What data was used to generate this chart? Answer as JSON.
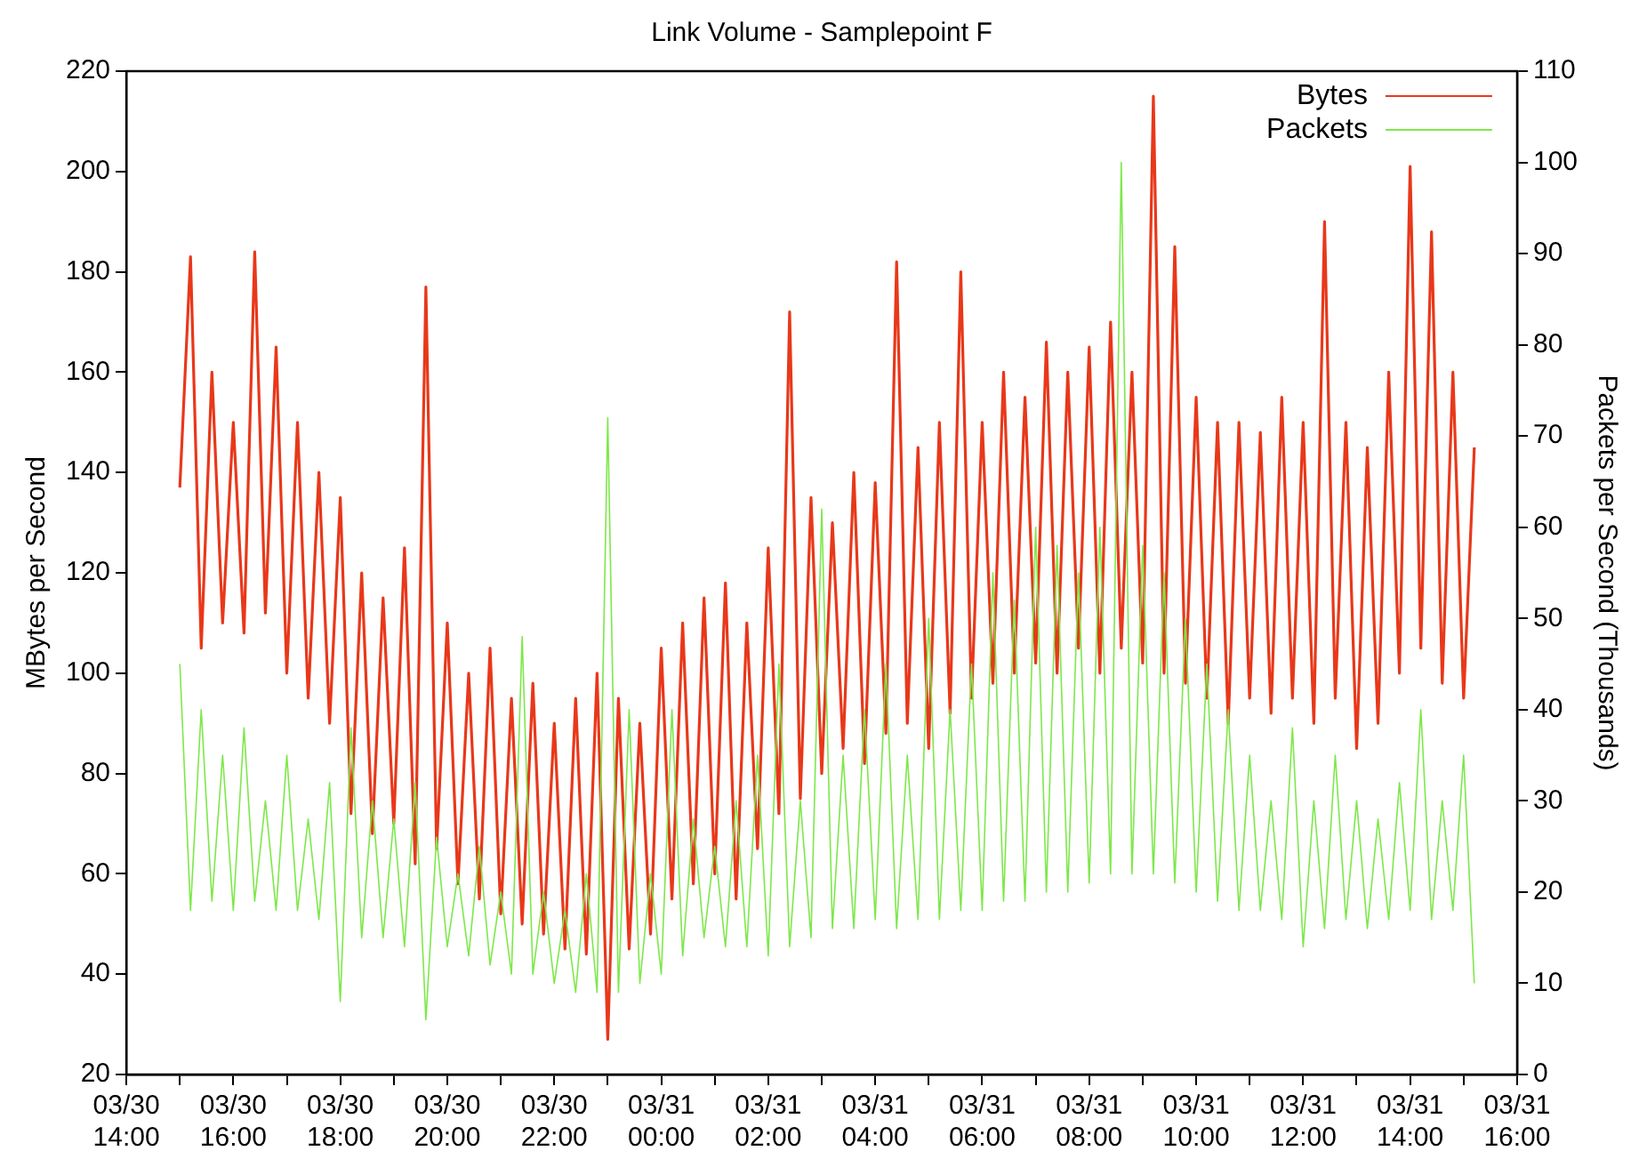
{
  "chart_data": {
    "type": "line",
    "title": "Link Volume - Samplepoint F",
    "ylabel": "MBytes per Second",
    "y2label": "Packets per Second (Thousands)",
    "x": [
      "--03-30T15:00",
      "--03-30T15:12",
      "--03-30T15:24",
      "--03-30T15:36",
      "--03-30T15:48",
      "--03-30T16:00",
      "--03-30T16:12",
      "--03-30T16:24",
      "--03-30T16:36",
      "--03-30T16:48",
      "--03-30T17:00",
      "--03-30T17:12",
      "--03-30T17:24",
      "--03-30T17:36",
      "--03-30T17:48",
      "--03-30T18:00",
      "--03-30T18:12",
      "--03-30T18:24",
      "--03-30T18:36",
      "--03-30T18:48",
      "--03-30T19:00",
      "--03-30T19:12",
      "--03-30T19:24",
      "--03-30T19:36",
      "--03-30T19:48",
      "--03-30T20:00",
      "--03-30T20:12",
      "--03-30T20:24",
      "--03-30T20:36",
      "--03-30T20:48",
      "--03-30T21:00",
      "--03-30T21:12",
      "--03-30T21:24",
      "--03-30T21:36",
      "--03-30T21:48",
      "--03-30T22:00",
      "--03-30T22:12",
      "--03-30T22:24",
      "--03-30T22:36",
      "--03-30T22:48",
      "--03-30T23:00",
      "--03-30T23:12",
      "--03-30T23:24",
      "--03-30T23:36",
      "--03-30T23:48",
      "--03-31T00:00",
      "--03-31T00:12",
      "--03-31T00:24",
      "--03-31T00:36",
      "--03-31T00:48",
      "--03-31T01:00",
      "--03-31T01:12",
      "--03-31T01:24",
      "--03-31T01:36",
      "--03-31T01:48",
      "--03-31T02:00",
      "--03-31T02:12",
      "--03-31T02:24",
      "--03-31T02:36",
      "--03-31T02:48",
      "--03-31T03:00",
      "--03-31T03:12",
      "--03-31T03:24",
      "--03-31T03:36",
      "--03-31T03:48",
      "--03-31T04:00",
      "--03-31T04:12",
      "--03-31T04:24",
      "--03-31T04:36",
      "--03-31T04:48",
      "--03-31T05:00",
      "--03-31T05:12",
      "--03-31T05:24",
      "--03-31T05:36",
      "--03-31T05:48",
      "--03-31T06:00",
      "--03-31T06:12",
      "--03-31T06:24",
      "--03-31T06:36",
      "--03-31T06:48",
      "--03-31T07:00",
      "--03-31T07:12",
      "--03-31T07:24",
      "--03-31T07:36",
      "--03-31T07:48",
      "--03-31T08:00",
      "--03-31T08:12",
      "--03-31T08:24",
      "--03-31T08:36",
      "--03-31T08:48",
      "--03-31T09:00",
      "--03-31T09:12",
      "--03-31T09:24",
      "--03-31T09:36",
      "--03-31T09:48",
      "--03-31T10:00",
      "--03-31T10:12",
      "--03-31T10:24",
      "--03-31T10:36",
      "--03-31T10:48",
      "--03-31T11:00",
      "--03-31T11:12",
      "--03-31T11:24",
      "--03-31T11:36",
      "--03-31T11:48",
      "--03-31T12:00",
      "--03-31T12:12",
      "--03-31T12:24",
      "--03-31T12:36",
      "--03-31T12:48",
      "--03-31T13:00",
      "--03-31T13:12",
      "--03-31T13:24",
      "--03-31T13:36",
      "--03-31T13:48",
      "--03-31T14:00",
      "--03-31T14:12",
      "--03-31T14:24",
      "--03-31T14:36",
      "--03-31T14:48",
      "--03-31T15:00",
      "--03-31T15:12"
    ],
    "series": [
      {
        "name": "Bytes",
        "color": "#e8381a",
        "values": [
          137,
          183,
          105,
          160,
          110,
          150,
          108,
          184,
          112,
          165,
          100,
          150,
          95,
          140,
          90,
          135,
          72,
          120,
          68,
          115,
          70,
          125,
          62,
          177,
          65,
          110,
          58,
          100,
          55,
          105,
          52,
          95,
          50,
          98,
          48,
          90,
          45,
          95,
          44,
          100,
          27,
          95,
          45,
          90,
          48,
          105,
          55,
          110,
          58,
          115,
          60,
          118,
          55,
          110,
          65,
          125,
          72,
          172,
          75,
          135,
          80,
          130,
          85,
          140,
          82,
          138,
          88,
          182,
          90,
          145,
          85,
          150,
          92,
          180,
          95,
          150,
          98,
          160,
          100,
          155,
          102,
          166,
          100,
          160,
          105,
          165,
          100,
          170,
          105,
          160,
          102,
          215,
          100,
          185,
          98,
          155,
          95,
          150,
          90,
          150,
          95,
          148,
          92,
          155,
          95,
          150,
          90,
          190,
          95,
          150,
          85,
          145,
          90,
          160,
          100,
          201,
          105,
          188,
          98,
          160,
          95,
          145
        ]
      },
      {
        "name": "Packets",
        "color": "#7de84a",
        "axis": "y2",
        "values": [
          45,
          18,
          40,
          19,
          35,
          18,
          38,
          19,
          30,
          18,
          35,
          18,
          28,
          17,
          32,
          8,
          38,
          15,
          30,
          15,
          28,
          14,
          32,
          6,
          26,
          14,
          22,
          13,
          25,
          12,
          20,
          11,
          48,
          11,
          20,
          10,
          18,
          9,
          22,
          9,
          72,
          9,
          40,
          10,
          22,
          11,
          40,
          13,
          28,
          15,
          25,
          14,
          30,
          14,
          35,
          13,
          45,
          14,
          30,
          15,
          62,
          16,
          35,
          16,
          40,
          17,
          45,
          16,
          35,
          17,
          50,
          17,
          40,
          18,
          45,
          18,
          55,
          19,
          52,
          19,
          60,
          20,
          58,
          20,
          55,
          21,
          60,
          22,
          100,
          22,
          58,
          22,
          55,
          21,
          50,
          20,
          45,
          19,
          40,
          18,
          35,
          18,
          30,
          17,
          38,
          14,
          30,
          16,
          35,
          17,
          30,
          16,
          28,
          17,
          32,
          18,
          40,
          17,
          30,
          18,
          35,
          10
        ]
      }
    ],
    "xlim": [
      "--03-30T14:00",
      "--03-31T16:00"
    ],
    "xticks": [
      {
        "value": "--03-30T14:00",
        "label": "03/30 14:00"
      },
      {
        "value": "--03-30T15:00",
        "label": null
      },
      {
        "value": "--03-30T16:00",
        "label": "03/30 16:00"
      },
      {
        "value": "--03-30T17:00",
        "label": null
      },
      {
        "value": "--03-30T18:00",
        "label": "03/30 18:00"
      },
      {
        "value": "--03-30T19:00",
        "label": null
      },
      {
        "value": "--03-30T20:00",
        "label": "03/30 20:00"
      },
      {
        "value": "--03-30T21:00",
        "label": null
      },
      {
        "value": "--03-30T22:00",
        "label": "03/30 22:00"
      },
      {
        "value": "--03-30T23:00",
        "label": null
      },
      {
        "value": "--03-31T00:00",
        "label": "03/31 00:00"
      },
      {
        "value": "--03-31T01:00",
        "label": null
      },
      {
        "value": "--03-31T02:00",
        "label": "03/31 02:00"
      },
      {
        "value": "--03-31T03:00",
        "label": null
      },
      {
        "value": "--03-31T04:00",
        "label": "03/31 04:00"
      },
      {
        "value": "--03-31T05:00",
        "label": null
      },
      {
        "value": "--03-31T06:00",
        "label": "03/31 06:00"
      },
      {
        "value": "--03-31T07:00",
        "label": null
      },
      {
        "value": "--03-31T08:00",
        "label": "03/31 08:00"
      },
      {
        "value": "--03-31T09:00",
        "label": null
      },
      {
        "value": "--03-31T10:00",
        "label": "03/31 10:00"
      },
      {
        "value": "--03-31T11:00",
        "label": null
      },
      {
        "value": "--03-31T12:00",
        "label": "03/31 12:00"
      },
      {
        "value": "--03-31T13:00",
        "label": null
      },
      {
        "value": "--03-31T14:00",
        "label": "03/31 14:00"
      },
      {
        "value": "--03-31T15:00",
        "label": null
      },
      {
        "value": "--03-31T16:00",
        "label": "03/31 16:00"
      }
    ],
    "ylim": [
      20,
      220
    ],
    "yticks": [
      20,
      40,
      60,
      80,
      100,
      120,
      140,
      160,
      180,
      200,
      220
    ],
    "y2lim": [
      0,
      110
    ],
    "y2ticks": [
      0,
      10,
      20,
      30,
      40,
      50,
      60,
      70,
      80,
      90,
      100,
      110
    ],
    "grid": false,
    "legend": "top right",
    "marker": "none",
    "line_style": "solid"
  }
}
